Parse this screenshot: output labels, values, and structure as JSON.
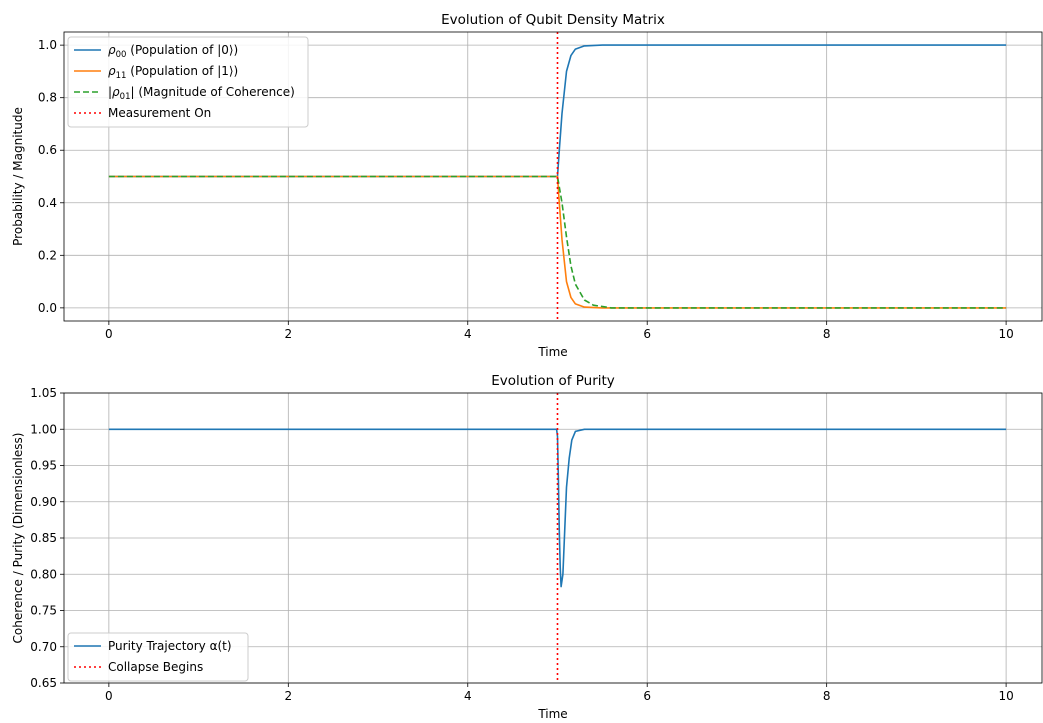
{
  "chart_data": [
    {
      "type": "line",
      "title": "Evolution of Qubit Density Matrix",
      "xlabel": "Time",
      "ylabel": "Probability / Magnitude",
      "xlim": [
        -0.5,
        10.4
      ],
      "ylim": [
        -0.05,
        1.05
      ],
      "xticks": [
        "0",
        "2",
        "4",
        "6",
        "8",
        "10"
      ],
      "yticks": [
        "0.0",
        "0.2",
        "0.4",
        "0.6",
        "0.8",
        "1.0"
      ],
      "grid": true,
      "legend_position": "upper left",
      "series": [
        {
          "name": "ρ00 (Population of |0⟩)",
          "legend_main": "ρ",
          "legend_sub": "00",
          "legend_rest": " (Population of |0⟩)",
          "color": "#1f77b4",
          "style": "solid",
          "x": [
            0,
            5.0,
            5.02,
            5.05,
            5.1,
            5.15,
            5.2,
            5.3,
            5.5,
            10
          ],
          "y": [
            0.5,
            0.5,
            0.6,
            0.74,
            0.9,
            0.96,
            0.985,
            0.997,
            1.0,
            1.0
          ]
        },
        {
          "name": "ρ11 (Population of |1⟩)",
          "legend_main": "ρ",
          "legend_sub": "11",
          "legend_rest": " (Population of |1⟩)",
          "color": "#ff7f0e",
          "style": "solid",
          "x": [
            0,
            5.0,
            5.02,
            5.05,
            5.1,
            5.15,
            5.2,
            5.3,
            5.5,
            10
          ],
          "y": [
            0.5,
            0.5,
            0.4,
            0.26,
            0.1,
            0.04,
            0.015,
            0.003,
            0.0,
            0.0
          ]
        },
        {
          "name": "|ρ01| (Magnitude of Coherence)",
          "legend_main": "|ρ",
          "legend_sub": "01",
          "legend_rest": "| (Magnitude of Coherence)",
          "color": "#2ca02c",
          "style": "dashed",
          "x": [
            0,
            5.0,
            5.05,
            5.1,
            5.15,
            5.2,
            5.3,
            5.4,
            5.6,
            10
          ],
          "y": [
            0.5,
            0.5,
            0.4,
            0.27,
            0.16,
            0.09,
            0.03,
            0.01,
            0.0,
            0.0
          ]
        },
        {
          "name": "Measurement On",
          "legend_main": "Measurement On",
          "legend_sub": "",
          "legend_rest": "",
          "color": "#ff0000",
          "style": "dotted",
          "vline": 5.0
        }
      ]
    },
    {
      "type": "line",
      "title": "Evolution of Purity",
      "xlabel": "Time",
      "ylabel": "Coherence / Purity (Dimensionless)",
      "xlim": [
        -0.5,
        10.4
      ],
      "ylim": [
        0.65,
        1.05
      ],
      "xticks": [
        "0",
        "2",
        "4",
        "6",
        "8",
        "10"
      ],
      "yticks": [
        "0.65",
        "0.70",
        "0.75",
        "0.80",
        "0.85",
        "0.90",
        "0.95",
        "1.00",
        "1.05"
      ],
      "grid": true,
      "legend_position": "lower left",
      "series": [
        {
          "name": "Purity Trajectory α(t)",
          "legend_main": "Purity Trajectory α(t)",
          "legend_sub": "",
          "legend_rest": "",
          "color": "#1f77b4",
          "style": "solid",
          "x": [
            0,
            4.99,
            5.0,
            5.01,
            5.02,
            5.03,
            5.04,
            5.06,
            5.08,
            5.1,
            5.13,
            5.16,
            5.2,
            5.3,
            10
          ],
          "y": [
            1.0,
            1.0,
            0.99,
            0.93,
            0.86,
            0.81,
            0.783,
            0.8,
            0.86,
            0.92,
            0.96,
            0.985,
            0.997,
            1.0,
            1.0
          ]
        },
        {
          "name": "Collapse Begins",
          "legend_main": "Collapse Begins",
          "legend_sub": "",
          "legend_rest": "",
          "color": "#ff0000",
          "style": "dotted",
          "vline": 5.0
        }
      ]
    }
  ]
}
